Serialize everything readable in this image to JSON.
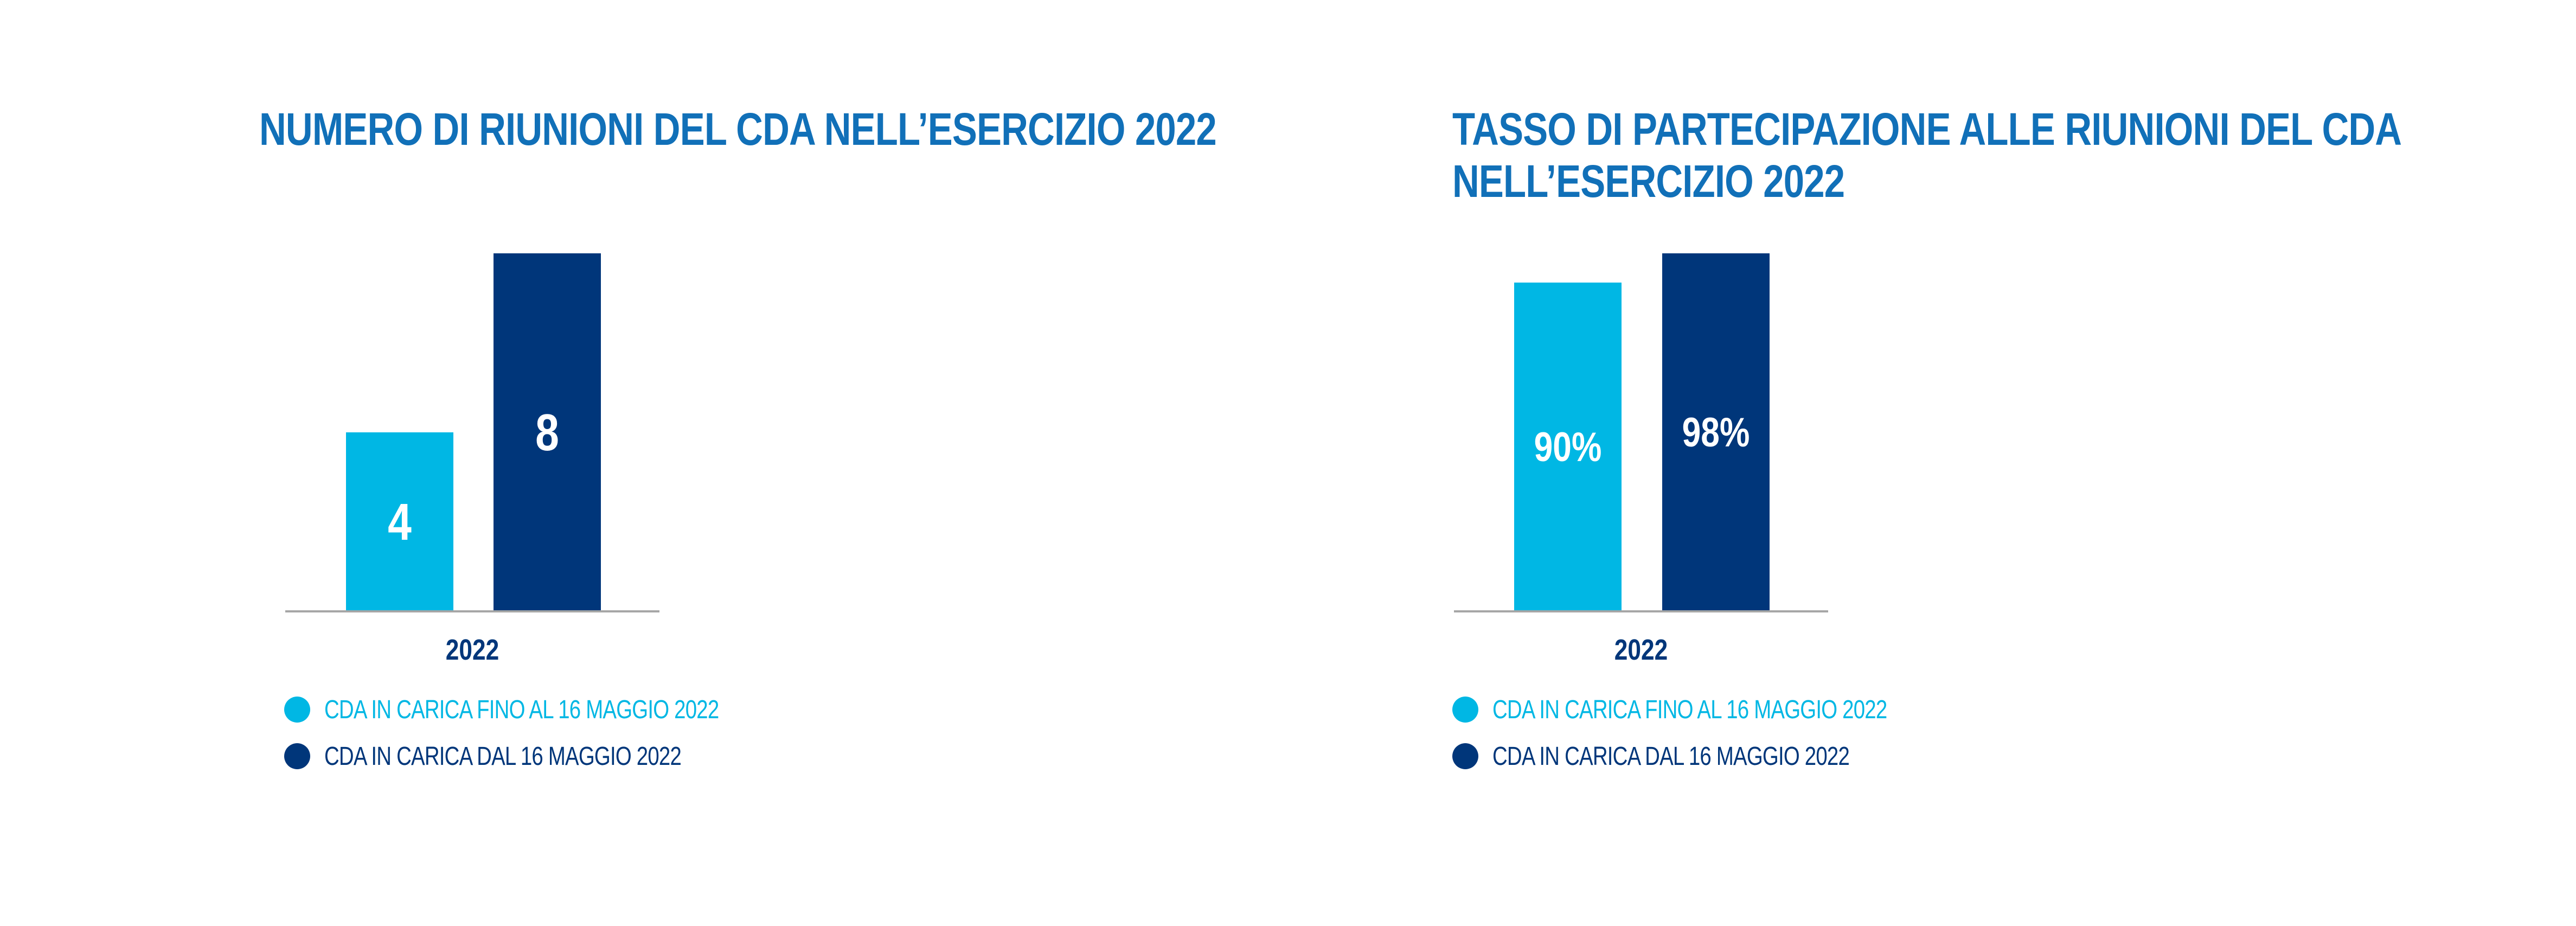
{
  "chart_data": [
    {
      "type": "bar",
      "title": "NUMERO DI RIUNIONI DEL CDA NELL’ESERCIZIO 2022",
      "categories": [
        "2022"
      ],
      "series": [
        {
          "name": "CDA IN CARICA FINO AL 16 MAGGIO 2022",
          "values": [
            4
          ],
          "labels": [
            "4"
          ],
          "color": "#00b7e4"
        },
        {
          "name": "CDA IN CARICA DAL 16 MAGGIO 2022",
          "values": [
            8
          ],
          "labels": [
            "8"
          ],
          "color": "#00367a"
        }
      ],
      "ylim": [
        0,
        8
      ],
      "grid": false,
      "legend": "bottom-left"
    },
    {
      "type": "bar",
      "title": "TASSO DI PARTECIPAZIONE ALLE RIUNIONI DEL CDA NELL’ESERCIZIO 2022",
      "title_lines": [
        "TASSO DI PARTECIPAZIONE ALLE RIUNIONI DEL CDA",
        "NELL’ESERCIZIO 2022"
      ],
      "categories": [
        "2022"
      ],
      "series": [
        {
          "name": "CDA IN CARICA FINO AL 16 MAGGIO 2022",
          "values": [
            90
          ],
          "labels": [
            "90%"
          ],
          "color": "#00b7e4"
        },
        {
          "name": "CDA IN CARICA DAL 16 MAGGIO 2022",
          "values": [
            98
          ],
          "labels": [
            "98%"
          ],
          "color": "#00367a"
        }
      ],
      "ylim": [
        0,
        98
      ],
      "grid": false,
      "legend": "bottom-left"
    }
  ],
  "colors": {
    "title": "#1170b8",
    "axis": "#a6a6a6",
    "category_label": "#00367a",
    "bar_label": "#ffffff"
  }
}
